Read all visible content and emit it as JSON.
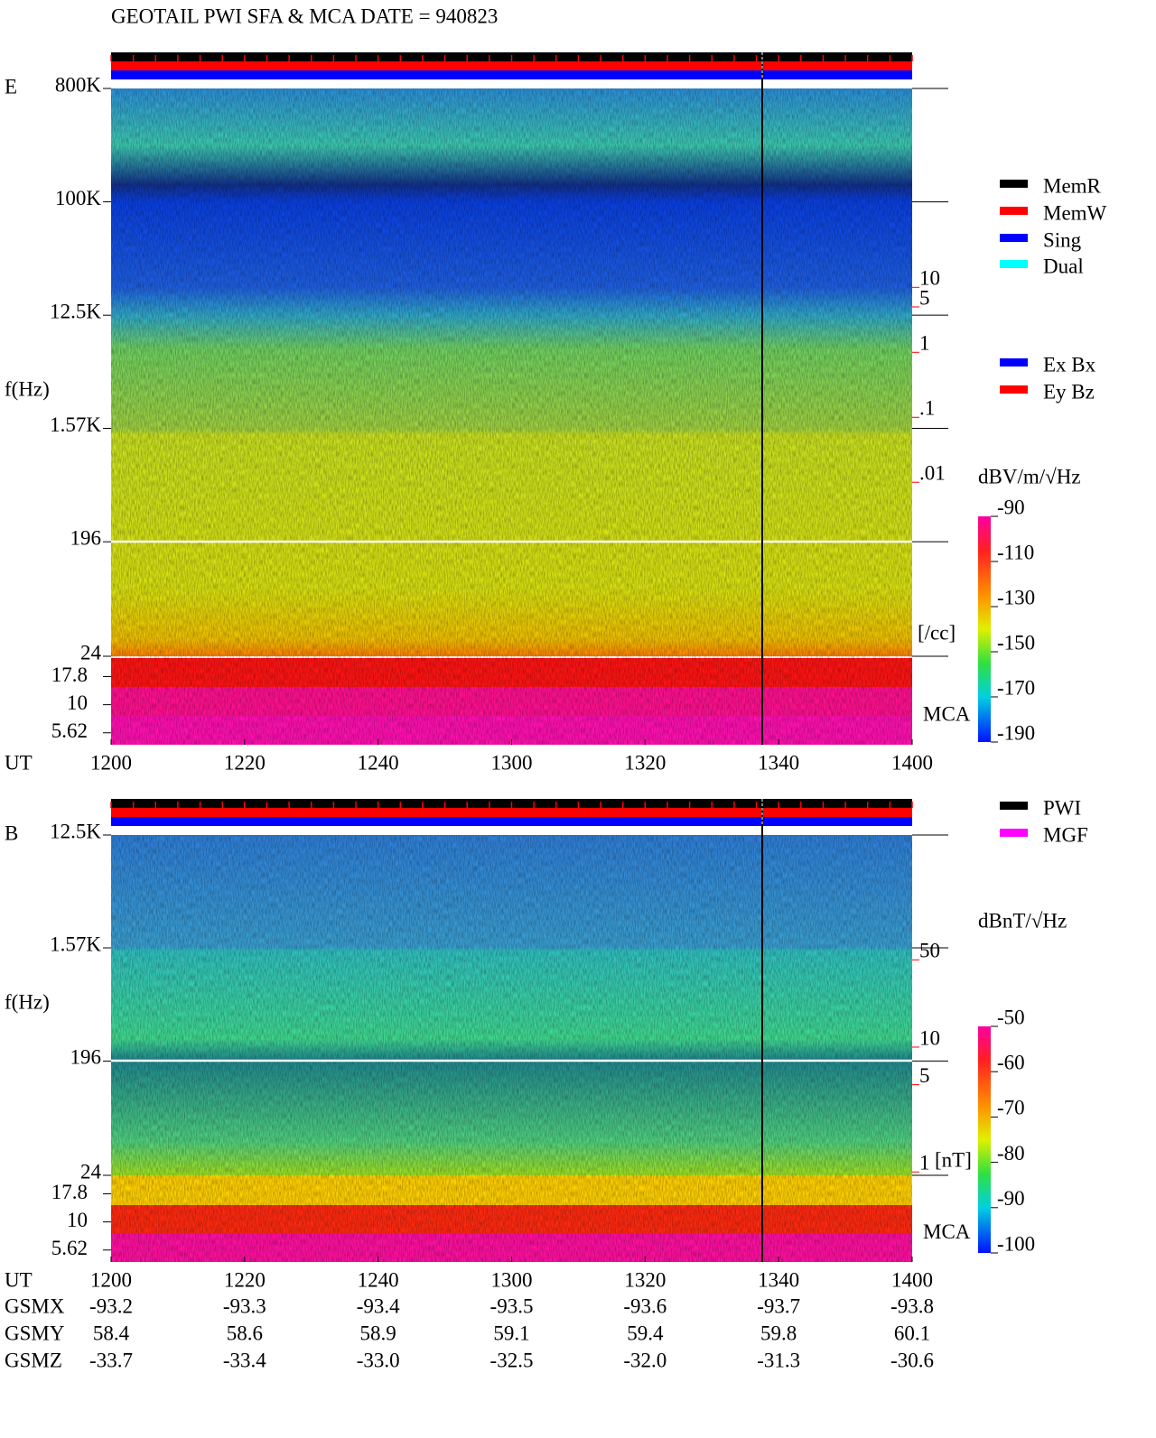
{
  "title": "GEOTAIL  PWI SFA & MCA   DATE = 940823",
  "chart_data": [
    {
      "type": "spectrogram",
      "panel": "E",
      "y_label": "f(Hz)",
      "yscale": "log",
      "ylim": [
        24,
        800000
      ],
      "yticks": [
        {
          "value": 800000,
          "label": "800K"
        },
        {
          "value": 100000,
          "label": "100K"
        },
        {
          "value": 12500,
          "label": "12.5K"
        },
        {
          "value": 1570,
          "label": "1.57K"
        },
        196,
        24
      ],
      "mca_label": "MCA",
      "mca_ylim": [
        4.4,
        26
      ],
      "mca_yticks": [
        17.8,
        10,
        5.62
      ],
      "x_label": "UT",
      "categories": [
        "1200",
        "1220",
        "1240",
        "1300",
        "1320",
        "1340",
        "1400"
      ],
      "density_lim": [
        2.1e-05,
        11500
      ],
      "density_ticks": [
        10,
        5,
        1,
        {
          "value": 0.1,
          "label": ".1"
        },
        {
          "value": 0.01,
          "label": ".01"
        }
      ],
      "density_unit": "[/cc]",
      "density_color": "#ff0000",
      "colorbar_label": "dBV/m/√Hz",
      "clim": [
        -190,
        -90
      ],
      "cticks": [
        -90,
        -110,
        -130,
        -150,
        -170,
        -190
      ],
      "legend": [
        {
          "name": "MemR",
          "color": "#000000"
        },
        {
          "name": "MemW",
          "color": "#ff0000"
        },
        {
          "name": "Sing",
          "color": "#0000ff"
        },
        {
          "name": "Dual",
          "color": "#00ffff"
        }
      ],
      "legend2": [
        {
          "name": "Ex Bx",
          "color": "#0000ff"
        },
        {
          "name": "Ey Bz",
          "color": "#ff0000"
        }
      ]
    },
    {
      "type": "spectrogram",
      "panel": "B",
      "y_label": "f(Hz)",
      "yscale": "log",
      "ylim": [
        24,
        12500
      ],
      "yticks": [
        {
          "value": 12500,
          "label": "12.5K"
        },
        {
          "value": 1570,
          "label": "1.57K"
        },
        196,
        24
      ],
      "mca_label": "MCA",
      "mca_ylim": [
        4.4,
        26
      ],
      "mca_yticks": [
        17.8,
        10,
        5.62
      ],
      "x_label": "UT",
      "categories": [
        "1200",
        "1220",
        "1240",
        "1300",
        "1320",
        "1340",
        "1400"
      ],
      "density_lim": [
        0.94,
        500
      ],
      "density_ticks": [
        50,
        10,
        5,
        1
      ],
      "density_unit": "[nT]",
      "density_color": "#ff0000",
      "colorbar_label": "dBnT/√Hz",
      "clim": [
        -100,
        -50
      ],
      "cticks": [
        -50,
        -60,
        -70,
        -80,
        -90,
        -100
      ],
      "legend": [
        {
          "name": "PWI",
          "color": "#000000"
        },
        {
          "name": "MGF",
          "color": "#ff00ff"
        }
      ]
    }
  ],
  "orbit": {
    "rows": [
      {
        "name": "GSMX",
        "values": [
          -93.2,
          -93.3,
          -93.4,
          -93.5,
          -93.6,
          -93.7,
          -93.8
        ]
      },
      {
        "name": "GSMY",
        "values": [
          58.4,
          58.6,
          58.9,
          59.1,
          59.4,
          59.8,
          60.1
        ]
      },
      {
        "name": "GSMZ",
        "values": [
          -33.7,
          -33.4,
          -33.0,
          -32.5,
          -32.0,
          -31.3,
          -30.6
        ],
        "value_labels": [
          "-33.7",
          "-33.4",
          "-33.0",
          "-32.5",
          "-32.0",
          "-31.3",
          "-30.6"
        ]
      }
    ]
  }
}
